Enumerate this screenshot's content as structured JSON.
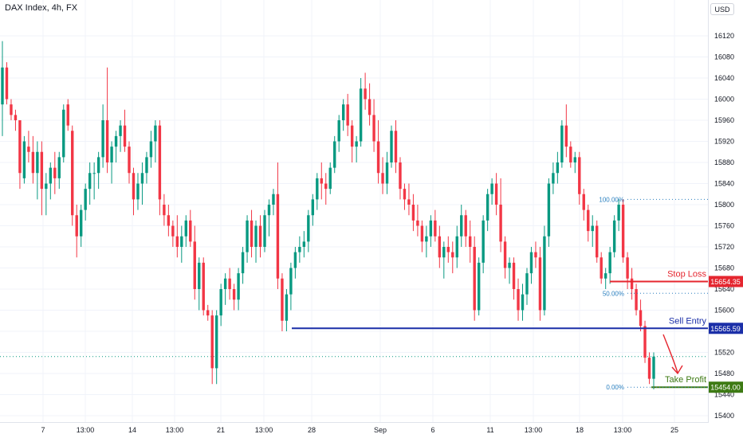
{
  "header": {
    "title": "DAX Index, 4h, FX",
    "currency": "USD"
  },
  "colors": {
    "up": "#089981",
    "down": "#f23645",
    "stop": "#e5262f",
    "entry": "#1b2fa8",
    "profit": "#3d7a14",
    "fib": "#2a7fbf",
    "grid": "#f0f3fa"
  },
  "chart_data": {
    "type": "candlestick",
    "instrument": "DAX Index",
    "timeframe": "4h",
    "source": "FX",
    "y_ticks": [
      15400,
      15440,
      15480,
      15520,
      15560,
      15600,
      15640,
      15680,
      15720,
      15760,
      15800,
      15840,
      15880,
      15920,
      15960,
      16000,
      16040,
      16080,
      16120
    ],
    "x_ticks": [
      "7",
      "13:00",
      "14",
      "13:00",
      "21",
      "13:00",
      "28",
      "Sep",
      "6",
      "11",
      "13:00",
      "18",
      "13:00",
      "25"
    ],
    "levels": {
      "stop_loss": {
        "label": "Stop Loss",
        "value": "15654.35",
        "price": 15654.35
      },
      "sell_entry": {
        "label": "Sell Entry",
        "value": "15565.59",
        "price": 15565.59
      },
      "take_profit": {
        "label": "Take Profit",
        "value": "15454.00",
        "price": 15454.0
      }
    },
    "fibonacci": [
      {
        "label": "100.00%",
        "price": 15810
      },
      {
        "label": "50.00%",
        "price": 15632
      },
      {
        "label": "0.00%",
        "price": 15454
      }
    ],
    "last_price": 15512,
    "candles": [
      [
        15990,
        16110,
        15930,
        16060
      ],
      [
        16060,
        16070,
        15990,
        16000
      ],
      [
        15990,
        16000,
        15960,
        15970
      ],
      [
        15970,
        15980,
        15940,
        15960
      ],
      [
        15960,
        15960,
        15830,
        15860
      ],
      [
        15850,
        15930,
        15840,
        15920
      ],
      [
        15910,
        15940,
        15880,
        15900
      ],
      [
        15900,
        15930,
        15840,
        15860
      ],
      [
        15860,
        15920,
        15810,
        15900
      ],
      [
        15900,
        15920,
        15780,
        15830
      ],
      [
        15830,
        15860,
        15780,
        15840
      ],
      [
        15840,
        15880,
        15810,
        15870
      ],
      [
        15870,
        15900,
        15820,
        15850
      ],
      [
        15850,
        15900,
        15830,
        15890
      ],
      [
        15890,
        15990,
        15880,
        15980
      ],
      [
        15990,
        16000,
        15940,
        15950
      ],
      [
        15940,
        15950,
        15760,
        15780
      ],
      [
        15780,
        15800,
        15700,
        15740
      ],
      [
        15740,
        15800,
        15720,
        15790
      ],
      [
        15790,
        15840,
        15770,
        15830
      ],
      [
        15830,
        15880,
        15800,
        15860
      ],
      [
        15860,
        15880,
        15810,
        15860
      ],
      [
        15860,
        15900,
        15830,
        15890
      ],
      [
        15890,
        15990,
        15870,
        15960
      ],
      [
        15960,
        16060,
        15860,
        15880
      ],
      [
        15880,
        15920,
        15840,
        15910
      ],
      [
        15910,
        15940,
        15880,
        15930
      ],
      [
        15930,
        15960,
        15900,
        15950
      ],
      [
        15950,
        15980,
        15900,
        15910
      ],
      [
        15910,
        15920,
        15840,
        15860
      ],
      [
        15860,
        15870,
        15780,
        15810
      ],
      [
        15810,
        15860,
        15790,
        15840
      ],
      [
        15840,
        15880,
        15800,
        15860
      ],
      [
        15860,
        15900,
        15840,
        15890
      ],
      [
        15890,
        15940,
        15870,
        15920
      ],
      [
        15920,
        15960,
        15880,
        15950
      ],
      [
        15950,
        15960,
        15780,
        15810
      ],
      [
        15800,
        15820,
        15760,
        15780
      ],
      [
        15780,
        15800,
        15740,
        15760
      ],
      [
        15760,
        15770,
        15720,
        15740
      ],
      [
        15740,
        15780,
        15700,
        15720
      ],
      [
        15720,
        15760,
        15690,
        15740
      ],
      [
        15740,
        15780,
        15720,
        15770
      ],
      [
        15770,
        15790,
        15720,
        15730
      ],
      [
        15730,
        15760,
        15620,
        15640
      ],
      [
        15640,
        15700,
        15600,
        15690
      ],
      [
        15690,
        15700,
        15590,
        15600
      ],
      [
        15600,
        15610,
        15580,
        15590
      ],
      [
        15590,
        15600,
        15460,
        15490
      ],
      [
        15490,
        15600,
        15460,
        15590
      ],
      [
        15590,
        15650,
        15570,
        15640
      ],
      [
        15640,
        15670,
        15610,
        15660
      ],
      [
        15660,
        15680,
        15620,
        15640
      ],
      [
        15640,
        15650,
        15600,
        15620
      ],
      [
        15620,
        15680,
        15600,
        15670
      ],
      [
        15670,
        15720,
        15650,
        15710
      ],
      [
        15710,
        15780,
        15690,
        15770
      ],
      [
        15770,
        15790,
        15700,
        15720
      ],
      [
        15720,
        15770,
        15690,
        15760
      ],
      [
        15760,
        15780,
        15700,
        15720
      ],
      [
        15720,
        15790,
        15710,
        15780
      ],
      [
        15780,
        15810,
        15740,
        15800
      ],
      [
        15800,
        15830,
        15780,
        15820
      ],
      [
        15820,
        15880,
        15640,
        15660
      ],
      [
        15660,
        15670,
        15560,
        15580
      ],
      [
        15580,
        15640,
        15560,
        15630
      ],
      [
        15630,
        15690,
        15600,
        15680
      ],
      [
        15680,
        15720,
        15660,
        15710
      ],
      [
        15710,
        15740,
        15690,
        15720
      ],
      [
        15720,
        15750,
        15700,
        15730
      ],
      [
        15730,
        15790,
        15710,
        15780
      ],
      [
        15780,
        15820,
        15760,
        15810
      ],
      [
        15810,
        15860,
        15790,
        15850
      ],
      [
        15850,
        15880,
        15810,
        15840
      ],
      [
        15840,
        15860,
        15800,
        15830
      ],
      [
        15830,
        15880,
        15820,
        15870
      ],
      [
        15870,
        15930,
        15860,
        15920
      ],
      [
        15920,
        15970,
        15900,
        15960
      ],
      [
        15960,
        16000,
        15940,
        15990
      ],
      [
        15990,
        16010,
        15930,
        15950
      ],
      [
        15950,
        15960,
        15880,
        15910
      ],
      [
        15910,
        15930,
        15880,
        15920
      ],
      [
        15920,
        16040,
        15910,
        16020
      ],
      [
        16020,
        16050,
        15980,
        16000
      ],
      [
        16000,
        16030,
        15950,
        15970
      ],
      [
        15970,
        16000,
        15900,
        15920
      ],
      [
        15920,
        15960,
        15840,
        15860
      ],
      [
        15860,
        15890,
        15820,
        15840
      ],
      [
        15840,
        15900,
        15820,
        15880
      ],
      [
        15880,
        15950,
        15870,
        15940
      ],
      [
        15940,
        15960,
        15860,
        15880
      ],
      [
        15880,
        15890,
        15810,
        15830
      ],
      [
        15830,
        15840,
        15790,
        15810
      ],
      [
        15810,
        15840,
        15780,
        15800
      ],
      [
        15800,
        15820,
        15750,
        15770
      ],
      [
        15770,
        15800,
        15740,
        15760
      ],
      [
        15760,
        15770,
        15710,
        15730
      ],
      [
        15730,
        15760,
        15700,
        15740
      ],
      [
        15740,
        15780,
        15720,
        15770
      ],
      [
        15770,
        15790,
        15730,
        15740
      ],
      [
        15740,
        15760,
        15680,
        15700
      ],
      [
        15700,
        15730,
        15660,
        15720
      ],
      [
        15720,
        15740,
        15690,
        15710
      ],
      [
        15710,
        15730,
        15670,
        15700
      ],
      [
        15700,
        15760,
        15680,
        15740
      ],
      [
        15740,
        15800,
        15720,
        15780
      ],
      [
        15780,
        15790,
        15720,
        15740
      ],
      [
        15740,
        15770,
        15690,
        15720
      ],
      [
        15720,
        15740,
        15580,
        15600
      ],
      [
        15600,
        15700,
        15590,
        15690
      ],
      [
        15690,
        15780,
        15670,
        15770
      ],
      [
        15770,
        15830,
        15750,
        15820
      ],
      [
        15820,
        15850,
        15800,
        15840
      ],
      [
        15840,
        15860,
        15780,
        15800
      ],
      [
        15800,
        15850,
        15710,
        15730
      ],
      [
        15730,
        15740,
        15660,
        15680
      ],
      [
        15680,
        15700,
        15650,
        15690
      ],
      [
        15690,
        15700,
        15620,
        15640
      ],
      [
        15640,
        15660,
        15580,
        15600
      ],
      [
        15600,
        15650,
        15580,
        15630
      ],
      [
        15630,
        15680,
        15610,
        15670
      ],
      [
        15670,
        15720,
        15650,
        15710
      ],
      [
        15710,
        15730,
        15680,
        15700
      ],
      [
        15700,
        15720,
        15580,
        15600
      ],
      [
        15600,
        15760,
        15590,
        15740
      ],
      [
        15740,
        15850,
        15720,
        15840
      ],
      [
        15840,
        15880,
        15820,
        15860
      ],
      [
        15860,
        15900,
        15840,
        15880
      ],
      [
        15880,
        15960,
        15870,
        15950
      ],
      [
        15950,
        15990,
        15890,
        15910
      ],
      [
        15910,
        15920,
        15870,
        15880
      ],
      [
        15880,
        15900,
        15860,
        15890
      ],
      [
        15890,
        15900,
        15800,
        15820
      ],
      [
        15820,
        15830,
        15770,
        15790
      ],
      [
        15790,
        15800,
        15730,
        15750
      ],
      [
        15750,
        15780,
        15720,
        15760
      ],
      [
        15760,
        15770,
        15690,
        15700
      ],
      [
        15700,
        15710,
        15650,
        15660
      ],
      [
        15660,
        15680,
        15640,
        15670
      ],
      [
        15670,
        15720,
        15650,
        15710
      ],
      [
        15710,
        15780,
        15700,
        15770
      ],
      [
        15770,
        15810,
        15750,
        15800
      ],
      [
        15800,
        15810,
        15690,
        15700
      ],
      [
        15700,
        15710,
        15640,
        15660
      ],
      [
        15660,
        15680,
        15620,
        15640
      ],
      [
        15640,
        15650,
        15590,
        15600
      ],
      [
        15600,
        15620,
        15560,
        15570
      ],
      [
        15570,
        15580,
        15500,
        15510
      ],
      [
        15510,
        15520,
        15460,
        15470
      ],
      [
        15470,
        15520,
        15450,
        15512
      ]
    ]
  },
  "chart_title": ""
}
